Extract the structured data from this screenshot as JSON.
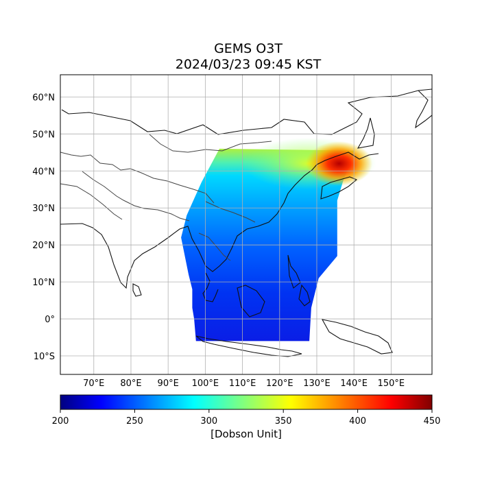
{
  "title": {
    "line1": "GEMS O3T",
    "line2": "2024/03/23 09:45 KST"
  },
  "map": {
    "lon_range": [
      61,
      161
    ],
    "lat_range": [
      -15,
      66
    ],
    "lon_ticks": [
      {
        "value": 70,
        "label": "70°E"
      },
      {
        "value": 80,
        "label": "80°E"
      },
      {
        "value": 90,
        "label": "90°E"
      },
      {
        "value": 100,
        "label": "100°E"
      },
      {
        "value": 110,
        "label": "110°E"
      },
      {
        "value": 120,
        "label": "120°E"
      },
      {
        "value": 130,
        "label": "130°E"
      },
      {
        "value": 140,
        "label": "140°E"
      },
      {
        "value": 150,
        "label": "150°E"
      }
    ],
    "lat_ticks": [
      {
        "value": 60,
        "label": "60°N"
      },
      {
        "value": 50,
        "label": "50°N"
      },
      {
        "value": 40,
        "label": "40°N"
      },
      {
        "value": 30,
        "label": "30°N"
      },
      {
        "value": 20,
        "label": "20°N"
      },
      {
        "value": 10,
        "label": "10°N"
      },
      {
        "value": 0,
        "label": "0°"
      },
      {
        "value": -10,
        "label": "10°S"
      }
    ],
    "grid": true,
    "swath_outline_lonlat": [
      [
        103.8,
        46
      ],
      [
        140,
        45.5
      ],
      [
        138.5,
        41
      ],
      [
        137,
        37
      ],
      [
        135.5,
        32
      ],
      [
        135.5,
        25
      ],
      [
        135.5,
        17
      ],
      [
        130.5,
        11
      ],
      [
        128.5,
        3
      ],
      [
        128,
        -6
      ],
      [
        97.5,
        -6
      ],
      [
        97,
        0
      ],
      [
        96.5,
        3
      ],
      [
        96.5,
        8
      ],
      [
        95.5,
        12
      ],
      [
        93.5,
        22
      ],
      [
        95,
        28
      ],
      [
        99,
        37
      ]
    ]
  },
  "colorbar": {
    "min": 200,
    "max": 450,
    "ticks": [
      "200",
      "250",
      "300",
      "350",
      "400",
      "450"
    ],
    "label": "[Dobson Unit]",
    "colormap": "jet"
  }
}
